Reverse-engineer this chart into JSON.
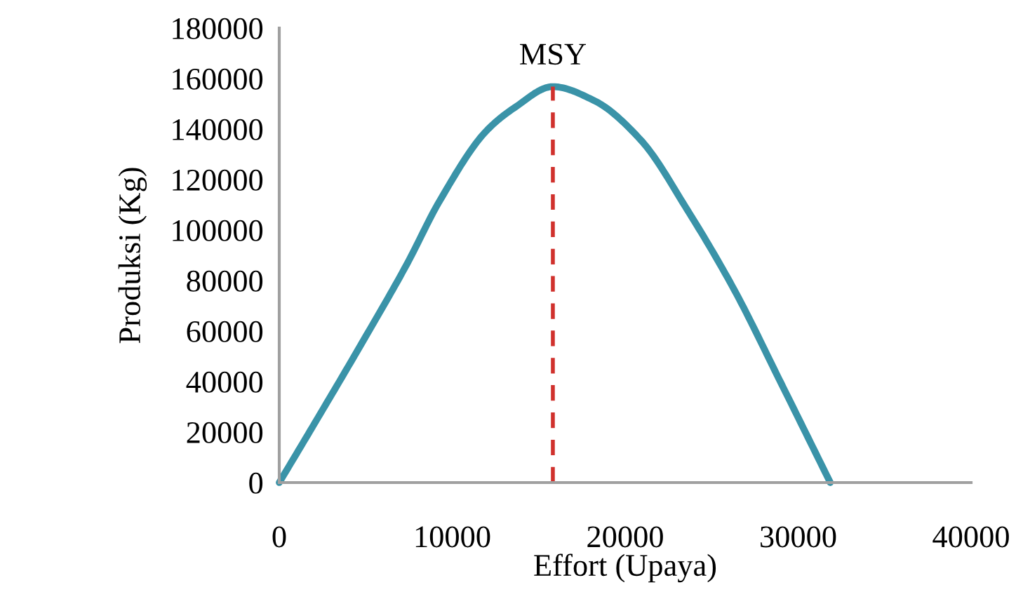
{
  "chart_data": {
    "type": "line",
    "xlabel": "Effort (Upaya)",
    "ylabel": "Produksi (Kg)",
    "xlim": [
      0,
      40000
    ],
    "xticks": [
      0,
      10000,
      20000,
      30000,
      40000
    ],
    "ylim": [
      0,
      180000
    ],
    "yticks": [
      0,
      20000,
      40000,
      60000,
      80000,
      100000,
      120000,
      140000,
      160000,
      180000
    ],
    "grid": false,
    "legend": false,
    "marker": "none",
    "series": [
      {
        "color": "#3a93a8",
        "line_style": "solid",
        "x": [
          0,
          1970,
          4680,
          7380,
          9270,
          11980,
          13610,
          15820,
          18200,
          20910,
          23610,
          26310,
          29020,
          31860
        ],
        "values": [
          0,
          22600,
          54100,
          86500,
          111500,
          139300,
          148500,
          156800,
          151300,
          135600,
          107800,
          76300,
          39300,
          0
        ]
      },
      {
        "color": "#d0312d",
        "line_style": "dashed",
        "x": [
          15820,
          15820
        ],
        "values": [
          0,
          156800
        ]
      }
    ],
    "annotations": [
      {
        "text": "MSY",
        "x": 15820,
        "y": 156800
      }
    ]
  }
}
